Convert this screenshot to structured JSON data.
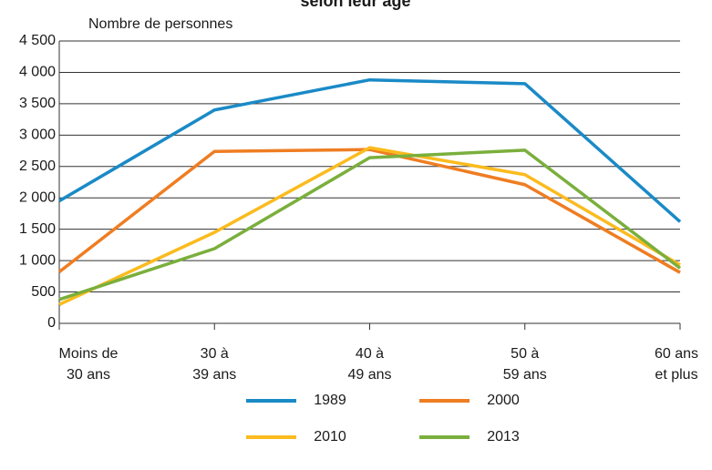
{
  "chart_data": {
    "type": "line",
    "title": "selon leur âge",
    "y_label": "Nombre de personnes",
    "categories": [
      [
        "Moins de",
        "30 ans"
      ],
      [
        "30 à",
        "39 ans"
      ],
      [
        "40 à",
        "49 ans"
      ],
      [
        "50 à",
        "59 ans"
      ],
      [
        "60 ans",
        "et plus"
      ]
    ],
    "series": [
      {
        "name": "1989",
        "color": "#1a8ac6",
        "values": [
          1950,
          3400,
          3880,
          3820,
          1620
        ]
      },
      {
        "name": "2000",
        "color": "#ef7d22",
        "values": [
          820,
          2740,
          2770,
          2210,
          810
        ]
      },
      {
        "name": "2010",
        "color": "#fbbb1e",
        "values": [
          300,
          1450,
          2800,
          2370,
          930
        ]
      },
      {
        "name": "2013",
        "color": "#7aaf3c",
        "values": [
          380,
          1190,
          2640,
          2760,
          880
        ]
      }
    ],
    "ylim": [
      0,
      4500
    ],
    "yticks": [
      0,
      500,
      {
        "value": 1000,
        "label": "1 000"
      },
      {
        "value": 1500,
        "label": "1 500"
      },
      {
        "value": 2000,
        "label": "2 000"
      },
      {
        "value": 2500,
        "label": "2 500"
      },
      {
        "value": 3000,
        "label": "3 000"
      },
      {
        "value": 3500,
        "label": "3 500"
      },
      {
        "value": 4000,
        "label": "4 000"
      },
      {
        "value": 4500,
        "label": "4 500"
      }
    ],
    "grid": true
  }
}
